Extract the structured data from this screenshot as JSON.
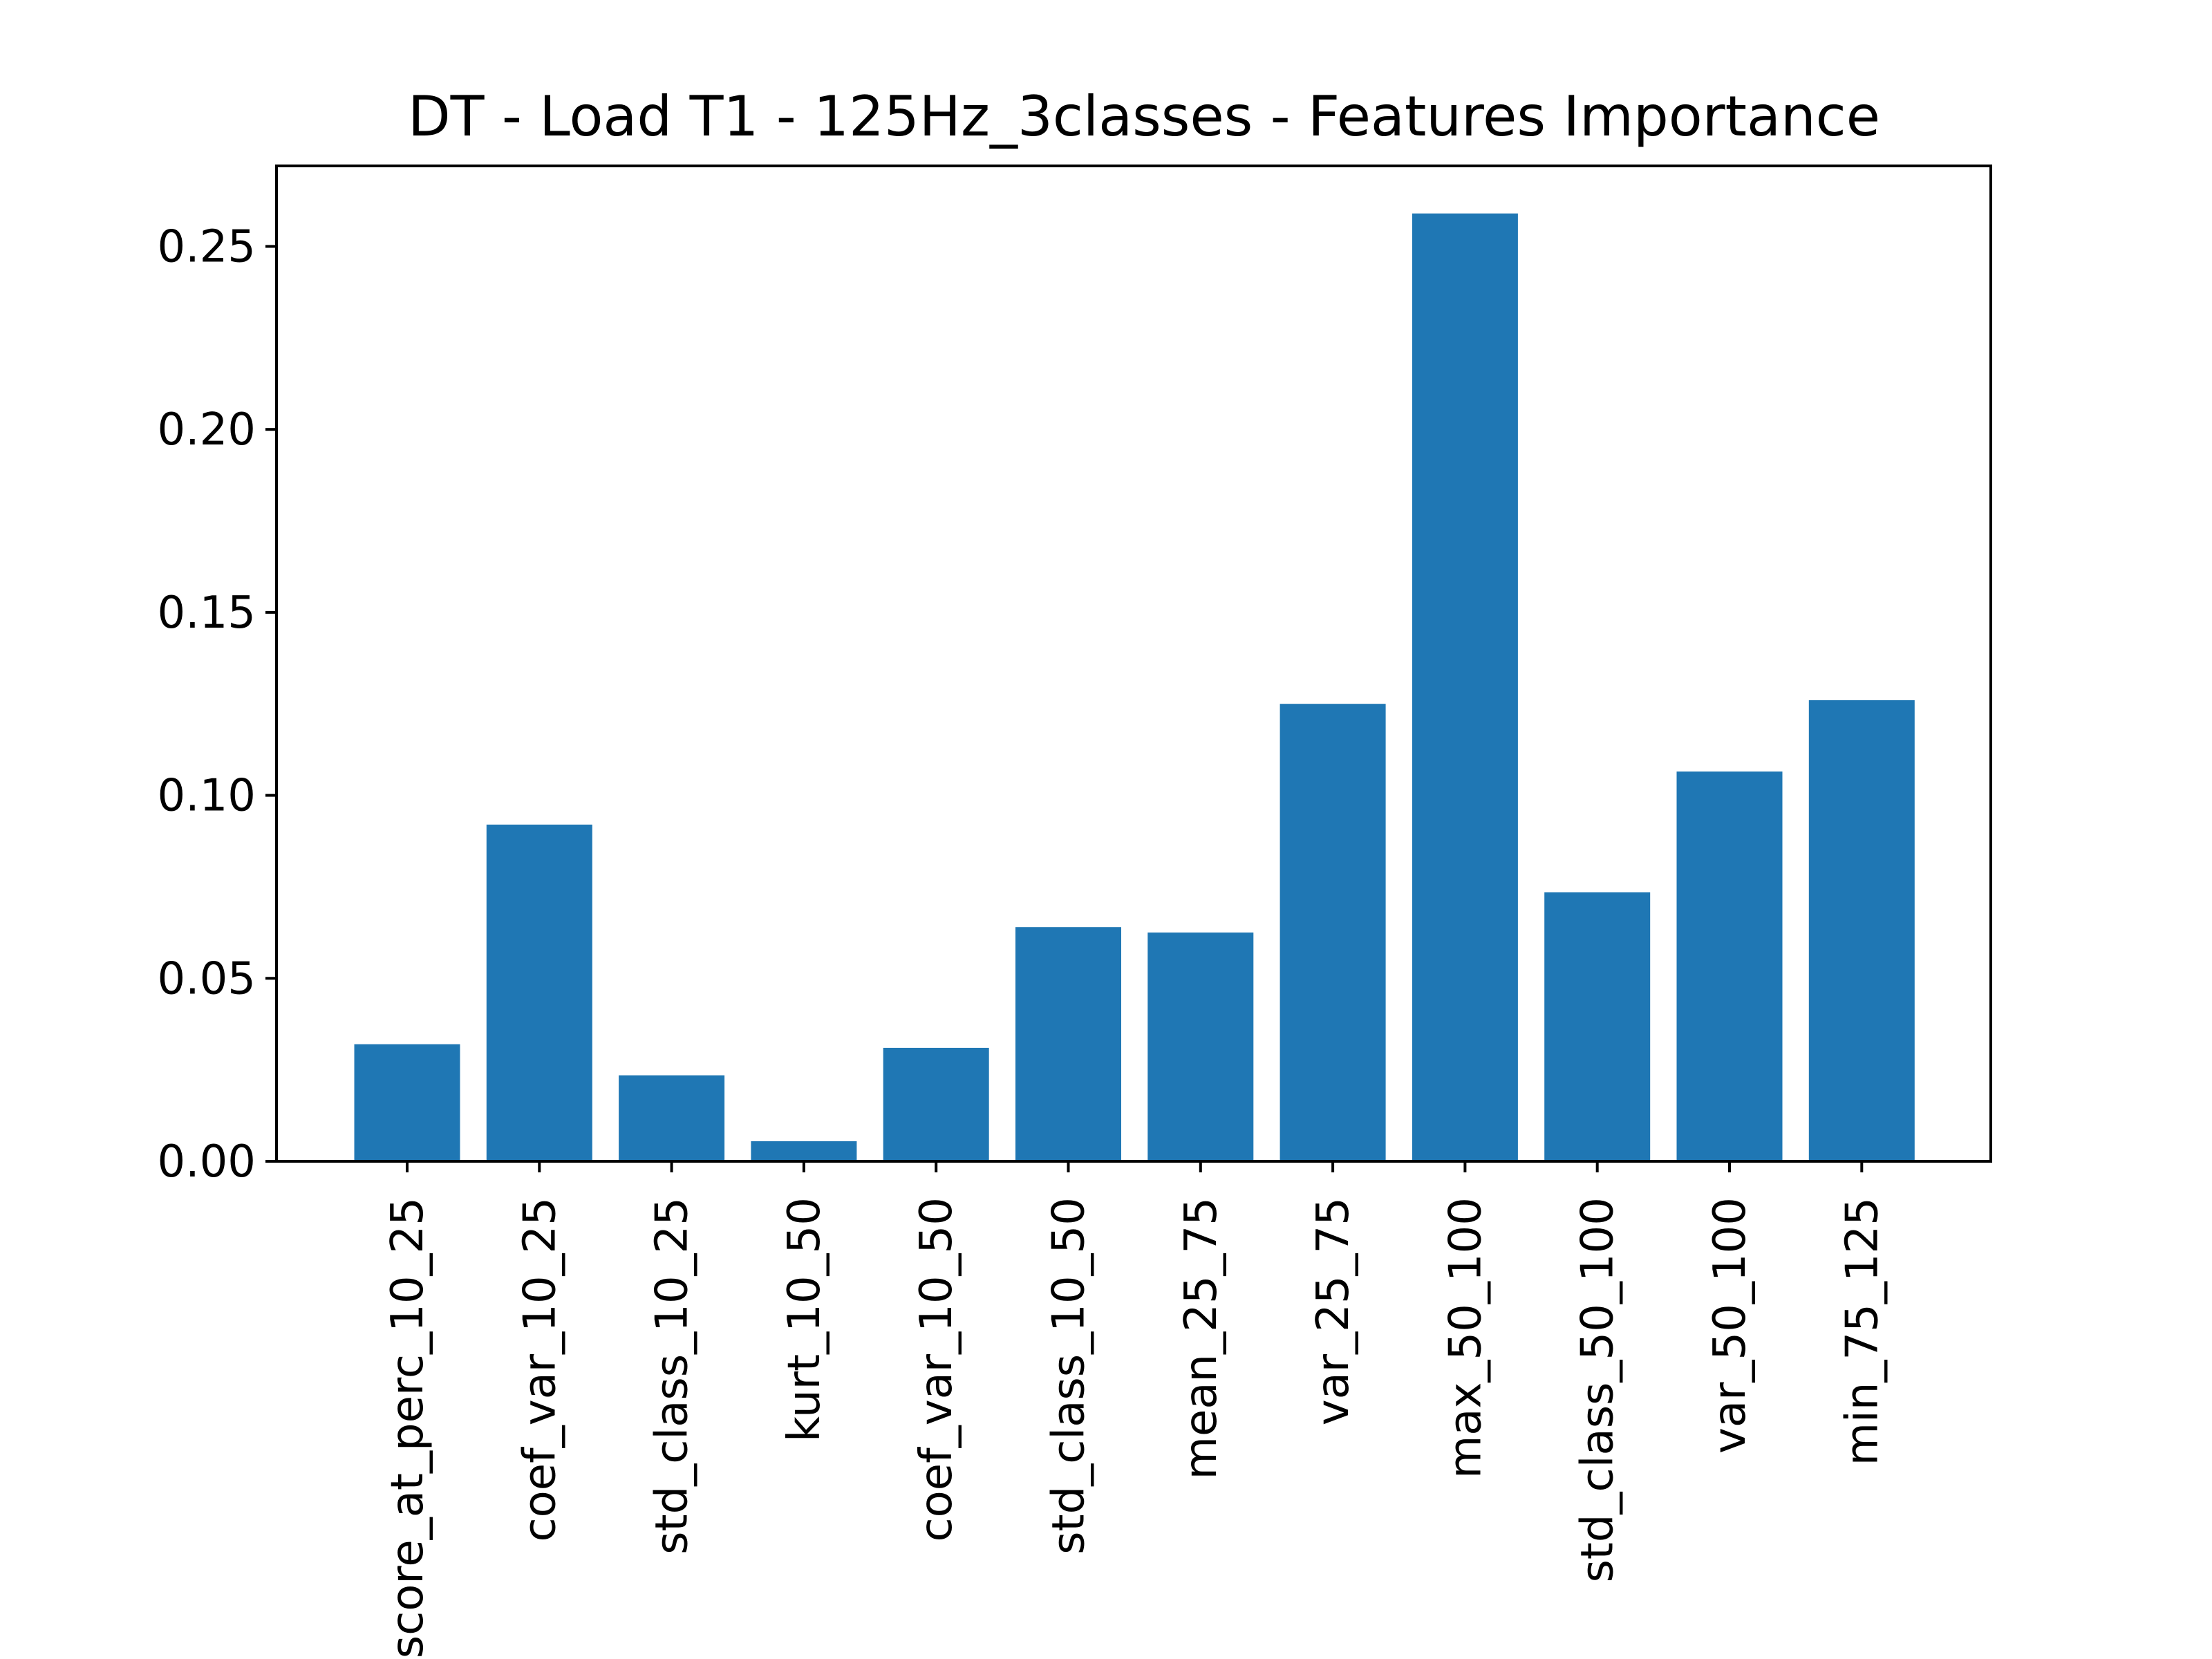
{
  "chart_data": {
    "type": "bar",
    "title": "DT - Load T1 - 125Hz_3classes - Features Importance",
    "xlabel": "",
    "ylabel": "",
    "categories": [
      "score_at_perc_10_25",
      "coef_var_10_25",
      "std_class_10_25",
      "kurt_10_50",
      "coef_var_10_50",
      "std_class_10_50",
      "mean_25_75",
      "var_25_75",
      "max_50_100",
      "std_class_50_100",
      "var_50_100",
      "min_75_125"
    ],
    "values": [
      0.032,
      0.092,
      0.0235,
      0.0055,
      0.031,
      0.064,
      0.0625,
      0.125,
      0.259,
      0.0735,
      0.1065,
      0.126
    ],
    "ylim": [
      0,
      0.272
    ],
    "yticks": [
      "0.00",
      "0.05",
      "0.10",
      "0.15",
      "0.20",
      "0.25"
    ],
    "bar_color": "#1f77b4",
    "grid": false,
    "legend": "none"
  }
}
